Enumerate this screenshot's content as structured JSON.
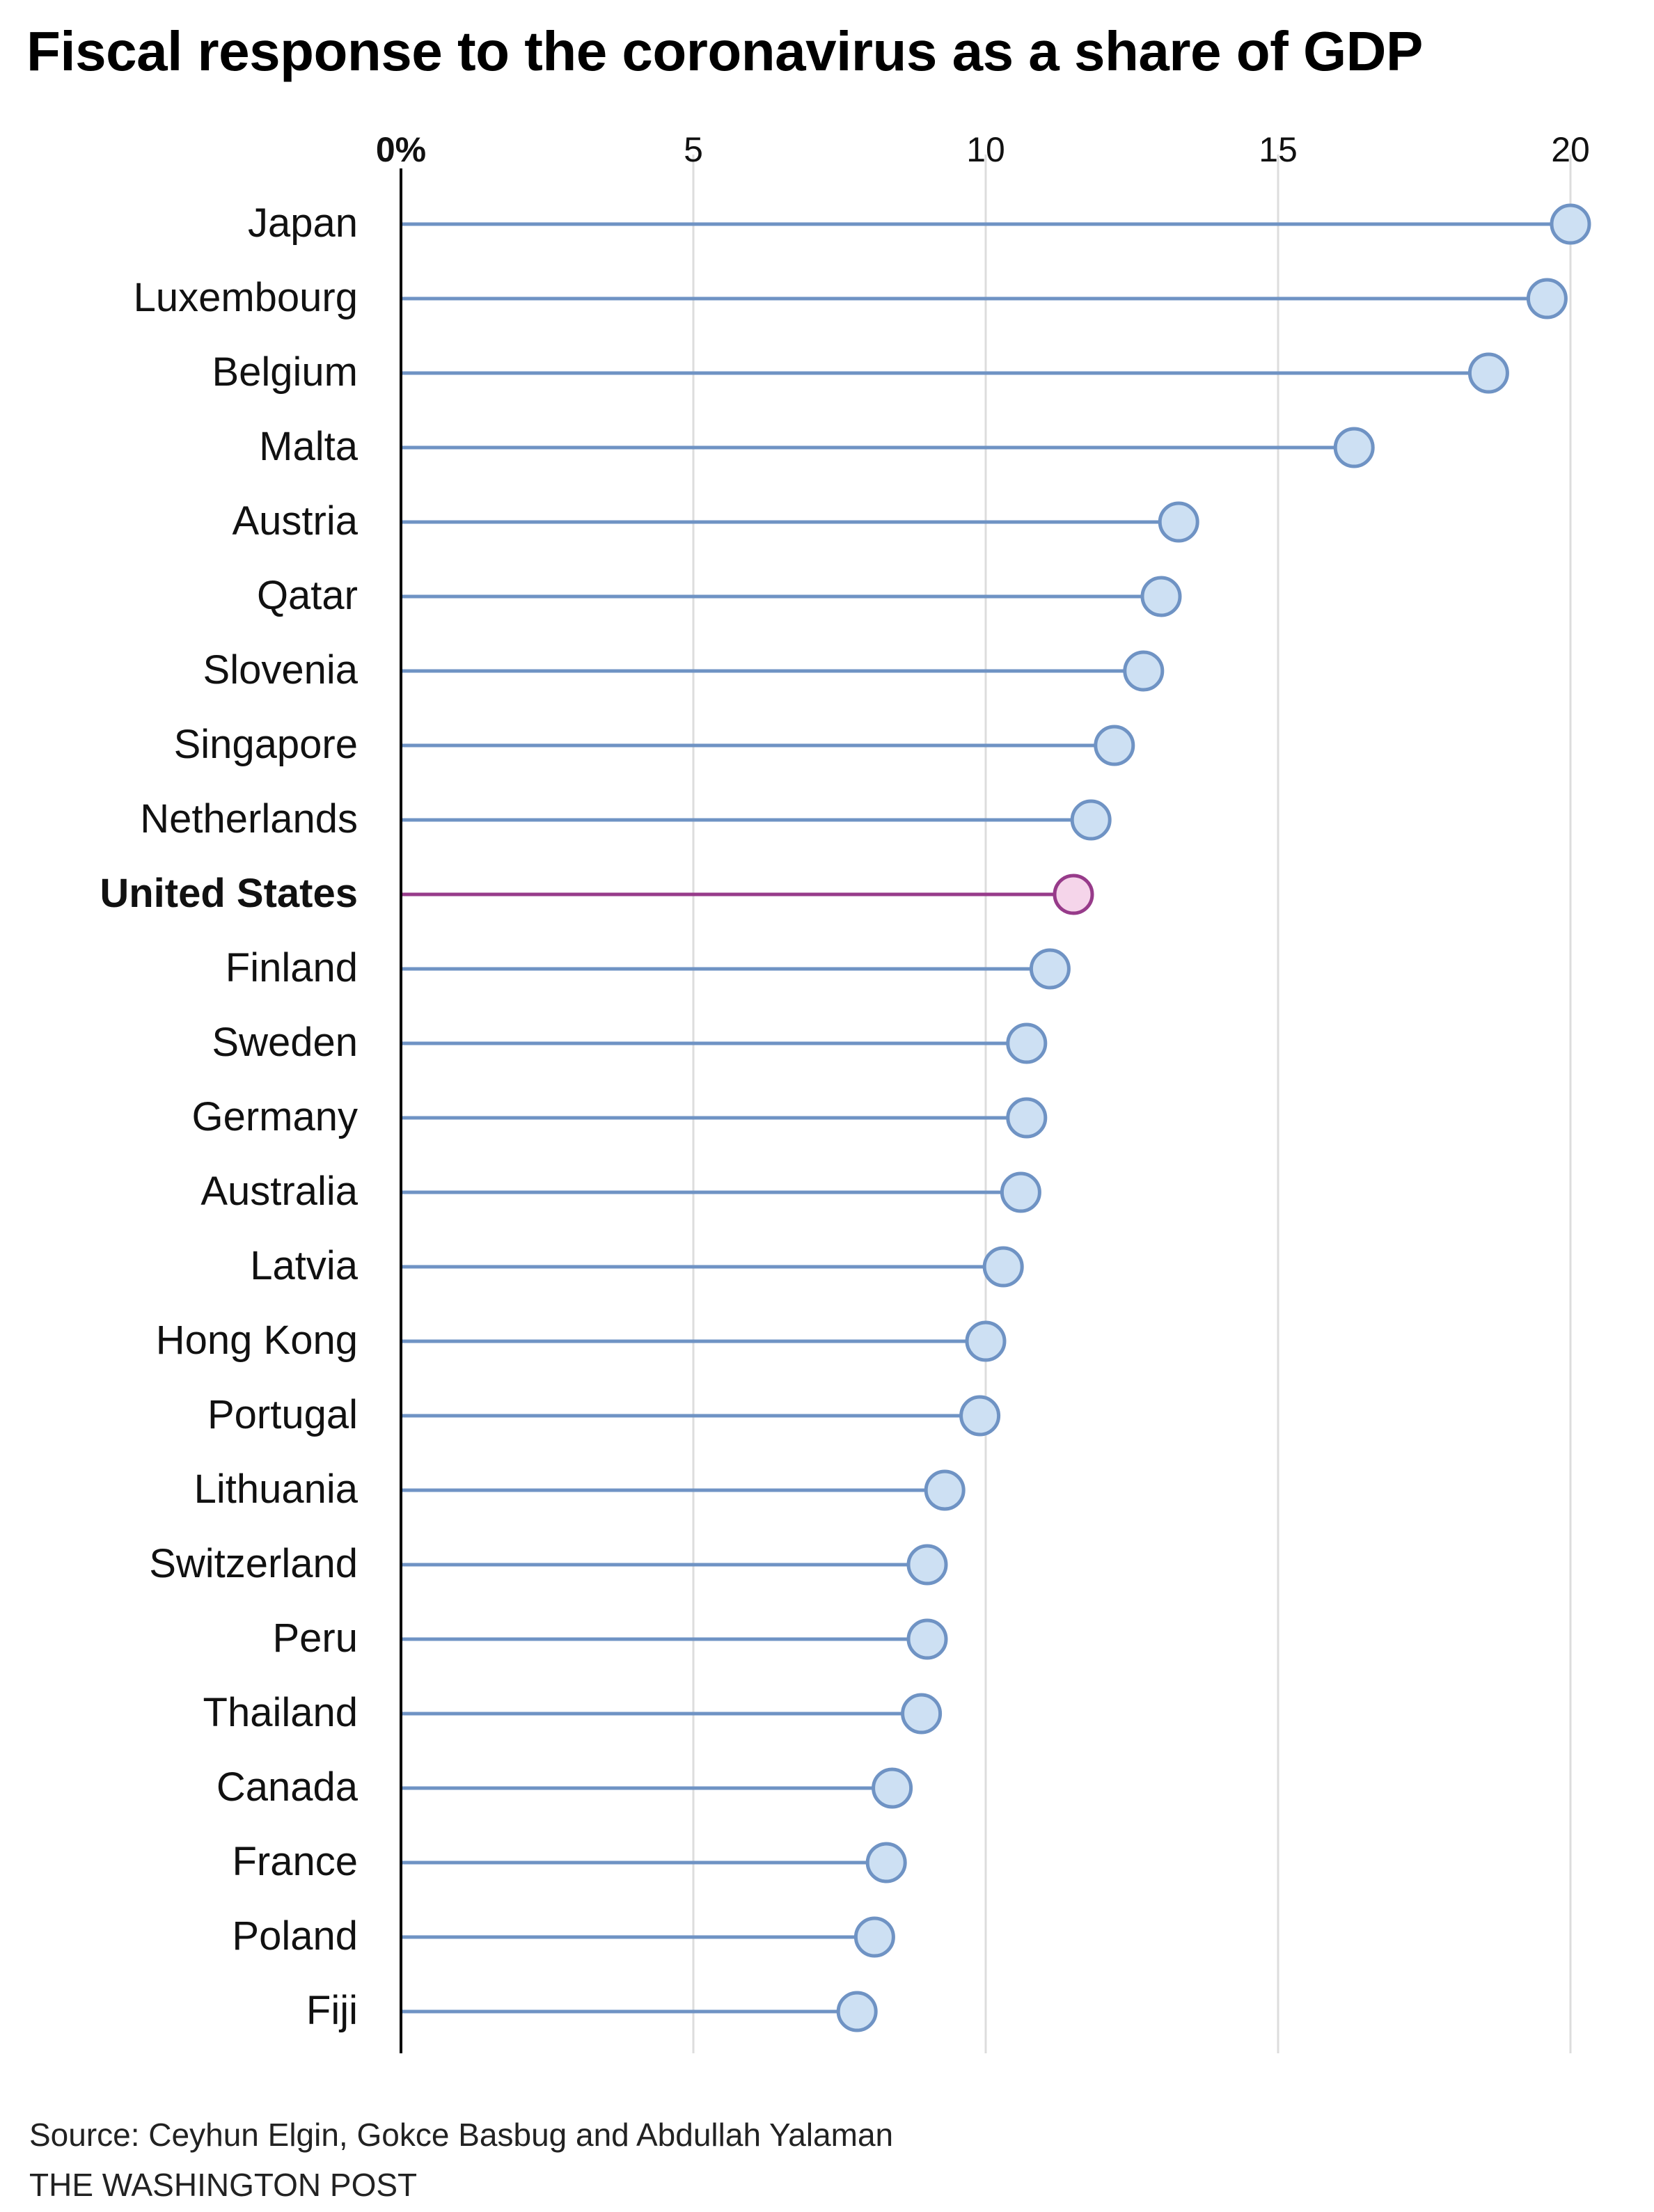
{
  "title": "Fiscal response to the coronavirus as a share of GDP",
  "source": "Source: Ceyhun Elgin, Gokce Basbug and Abdullah Yalaman",
  "credit": "THE WASHINGTON POST",
  "colors": {
    "default_line": "#6f93c4",
    "default_dot_fill": "#cde0f3",
    "default_dot_stroke": "#6f93c4",
    "highlight_line": "#973b8a",
    "highlight_dot_fill": "#f5d5ea",
    "highlight_dot_stroke": "#973b8a",
    "grid": "#dddddd",
    "axis": "#000000"
  },
  "chart_data": {
    "type": "lollipop",
    "title": "Fiscal response to the coronavirus as a share of GDP",
    "xlim": [
      0,
      20
    ],
    "x_ticks": [
      "0%",
      "5",
      "10",
      "15",
      "20"
    ],
    "x_tick_values": [
      0,
      5,
      10,
      15,
      20
    ],
    "grid": true,
    "highlight": "United States",
    "categories": [
      "Japan",
      "Luxembourg",
      "Belgium",
      "Malta",
      "Austria",
      "Qatar",
      "Slovenia",
      "Singapore",
      "Netherlands",
      "United States",
      "Finland",
      "Sweden",
      "Germany",
      "Australia",
      "Latvia",
      "Hong Kong",
      "Portugal",
      "Lithuania",
      "Switzerland",
      "Peru",
      "Thailand",
      "Canada",
      "France",
      "Poland",
      "Fiji"
    ],
    "values": [
      20.0,
      19.6,
      18.6,
      16.3,
      13.3,
      13.0,
      12.7,
      12.2,
      11.8,
      11.5,
      11.1,
      10.7,
      10.7,
      10.6,
      10.3,
      10.0,
      9.9,
      9.3,
      9.0,
      9.0,
      8.9,
      8.4,
      8.3,
      8.1,
      7.8
    ]
  }
}
